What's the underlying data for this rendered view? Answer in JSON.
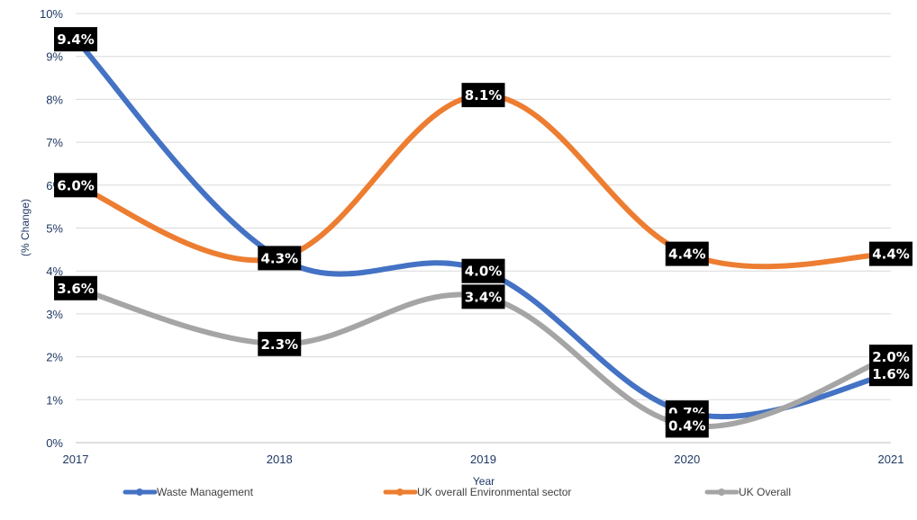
{
  "chart_data": {
    "type": "line",
    "title": "",
    "xlabel": "Year",
    "ylabel": "(% Change)",
    "categories": [
      "2017",
      "2018",
      "2019",
      "2020",
      "2021"
    ],
    "ylim": [
      0,
      10
    ],
    "yticks": [
      "0%",
      "1%",
      "2%",
      "3%",
      "4%",
      "5%",
      "6%",
      "7%",
      "8%",
      "9%",
      "10%"
    ],
    "grid": true,
    "legend_position": "bottom",
    "series": [
      {
        "name": "Waste Management",
        "color": "#4472c4",
        "values": [
          9.4,
          4.3,
          4.0,
          0.7,
          1.6
        ],
        "labels": [
          "9.4%",
          "4.3%",
          "4.0%",
          "0.7%",
          "1.6%"
        ]
      },
      {
        "name": "UK overall Environmental sector",
        "color": "#ed7d31",
        "values": [
          6.0,
          4.3,
          8.1,
          4.4,
          4.4
        ],
        "labels": [
          "6.0%",
          "",
          "8.1%",
          "4.4%",
          "4.4%"
        ]
      },
      {
        "name": "UK Overall",
        "color": "#a5a5a5",
        "values": [
          3.6,
          2.3,
          3.4,
          0.4,
          2.0
        ],
        "labels": [
          "3.6%",
          "2.3%",
          "3.4%",
          "0.4%",
          "2.0%"
        ]
      }
    ]
  }
}
